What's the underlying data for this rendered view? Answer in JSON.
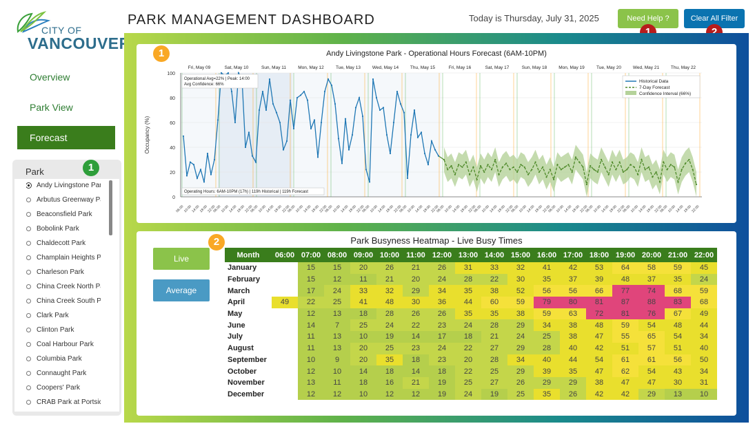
{
  "brand": {
    "city": "CITY OF",
    "name": "VANCOUVER"
  },
  "header": {
    "title": "PARK MANAGEMENT DASHBOARD",
    "date": "Today is Thursday, July 31, 2025",
    "help": "Need Help ?",
    "clear": "Clear All Filter"
  },
  "nav": [
    {
      "label": "Overview"
    },
    {
      "label": "Park View"
    },
    {
      "label": "Forecast"
    }
  ],
  "badges": {
    "one": "1",
    "two": "2"
  },
  "park": {
    "title": "Park",
    "selected": "Andy Livingstone Park",
    "items": [
      "Andy Livingstone Park",
      "Arbutus Greenway Park",
      "Beaconsfield Park",
      "Bobolink Park",
      "Chaldecott Park",
      "Champlain Heights Pa...",
      "Charleson Park",
      "China Creek North Park",
      "China Creek South Park",
      "Clark Park",
      "Clinton Park",
      "Coal Harbour Park",
      "Columbia Park",
      "Connaught Park",
      "Coopers' Park",
      "CRAB Park at Portside"
    ]
  },
  "chart_data": [
    {
      "type": "line",
      "title": "Andy Livingstone Park - Operational Hours Forecast (6AM-10PM)",
      "ylabel": "Occupancy (%)",
      "ylim": [
        0,
        100
      ],
      "yticks": [
        "0",
        "20",
        "40",
        "60",
        "80",
        "100"
      ],
      "day_labels": [
        "Fri, May 09",
        "Sat, May 10",
        "Sun, May 11",
        "Mon, May 12",
        "Tue, May 13",
        "Wed, May 14",
        "Thu, May 15",
        "Fri, May 16",
        "Sat, May 17",
        "Sun, May 18",
        "Mon, May 19",
        "Tue, May 20",
        "Wed, May 21",
        "Thu, May 22"
      ],
      "hour_ticks": [
        "06:00",
        "10:00",
        "14:00",
        "18:00",
        "22:00"
      ],
      "annotation_top": "Operational Avg=22% | Peak: 14:00",
      "annotation_top2": "Avg Confidence: 66%",
      "annotation_bottom": "Operating Hours: 6AM-10PM (17h) | 119h Historical | 119h Forecast",
      "legend_placement": "top-right",
      "colors": {
        "historical": "#1f77b4",
        "forecast": "#4f8a2a",
        "ci": "#b5d29a"
      },
      "series": [
        {
          "name": "Historical Data",
          "values": [
            49,
            17,
            28,
            26,
            15,
            22,
            12,
            35,
            18,
            30,
            62,
            100,
            98,
            100,
            85,
            60,
            100,
            95,
            40,
            52,
            33,
            28,
            70,
            85,
            70,
            95,
            75,
            68,
            60,
            38,
            45,
            78,
            55,
            80,
            82,
            85,
            78,
            55,
            62,
            32,
            60,
            85,
            95,
            90,
            75,
            47,
            27,
            63,
            38,
            50,
            72,
            80,
            65,
            22,
            12,
            95,
            80,
            70,
            72,
            50,
            35,
            60,
            85,
            75,
            68,
            15,
            50,
            70,
            48,
            52,
            35,
            26,
            45,
            38,
            33
          ]
        },
        {
          "name": "7-Day Forecast",
          "values": [
            30,
            22,
            25,
            18,
            26,
            24,
            28,
            18,
            24,
            14,
            25,
            20,
            26,
            22,
            30,
            18,
            24,
            27,
            22,
            24,
            20,
            26,
            24,
            18,
            22,
            28,
            20,
            24,
            16,
            22,
            14,
            26,
            22,
            24,
            26,
            20,
            32,
            28,
            24,
            10,
            25,
            22,
            20,
            30,
            24,
            18,
            28,
            22,
            28,
            20,
            22,
            26,
            24,
            18,
            30,
            22,
            24,
            16,
            20,
            12,
            28,
            22,
            26,
            24,
            12,
            22,
            27,
            30,
            22,
            10
          ]
        },
        {
          "name": "Confidence Interval (66%)"
        }
      ]
    },
    {
      "type": "heatmap",
      "title": "Park Busyness Heatmap - Live Busy Times",
      "row_header": "Month",
      "columns": [
        "06:00",
        "07:00",
        "08:00",
        "09:00",
        "10:00",
        "11:00",
        "12:00",
        "13:00",
        "14:00",
        "15:00",
        "16:00",
        "17:00",
        "18:00",
        "19:00",
        "20:00",
        "21:00",
        "22:00"
      ],
      "rows": [
        {
          "month": "January",
          "values": [
            "",
            15,
            15,
            20,
            26,
            21,
            26,
            31,
            33,
            32,
            41,
            42,
            53,
            64,
            58,
            59,
            45
          ]
        },
        {
          "month": "February",
          "values": [
            "",
            15,
            12,
            11,
            21,
            20,
            24,
            28,
            22,
            30,
            35,
            37,
            39,
            48,
            37,
            35,
            24
          ]
        },
        {
          "month": "March",
          "values": [
            "",
            17,
            24,
            33,
            32,
            29,
            34,
            35,
            38,
            52,
            56,
            56,
            66,
            77,
            74,
            68,
            59
          ]
        },
        {
          "month": "April",
          "values": [
            49,
            22,
            25,
            41,
            48,
            30,
            36,
            44,
            60,
            59,
            79,
            80,
            81,
            87,
            88,
            83,
            68
          ]
        },
        {
          "month": "May",
          "values": [
            "",
            12,
            13,
            18,
            28,
            26,
            26,
            35,
            35,
            38,
            59,
            63,
            72,
            81,
            76,
            67,
            49
          ]
        },
        {
          "month": "June",
          "values": [
            "",
            14,
            7,
            25,
            24,
            22,
            23,
            24,
            28,
            29,
            34,
            38,
            48,
            59,
            54,
            48,
            44
          ]
        },
        {
          "month": "July",
          "values": [
            "",
            11,
            13,
            10,
            19,
            14,
            17,
            18,
            21,
            24,
            25,
            38,
            47,
            55,
            65,
            54,
            34
          ]
        },
        {
          "month": "August",
          "values": [
            "",
            11,
            13,
            20,
            25,
            23,
            24,
            22,
            27,
            29,
            28,
            40,
            42,
            51,
            57,
            51,
            40
          ]
        },
        {
          "month": "September",
          "values": [
            "",
            10,
            9,
            20,
            35,
            18,
            23,
            20,
            28,
            34,
            40,
            44,
            54,
            61,
            61,
            56,
            50
          ]
        },
        {
          "month": "October",
          "values": [
            "",
            12,
            10,
            14,
            18,
            14,
            18,
            22,
            25,
            29,
            39,
            35,
            47,
            62,
            54,
            43,
            34
          ]
        },
        {
          "month": "November",
          "values": [
            "",
            13,
            11,
            18,
            16,
            21,
            19,
            25,
            27,
            26,
            29,
            29,
            38,
            47,
            47,
            30,
            31
          ]
        },
        {
          "month": "December",
          "values": [
            "",
            12,
            12,
            10,
            12,
            12,
            19,
            24,
            19,
            25,
            35,
            26,
            42,
            42,
            29,
            13,
            10
          ]
        }
      ],
      "buttons": {
        "live": "Live",
        "average": "Average"
      }
    }
  ]
}
